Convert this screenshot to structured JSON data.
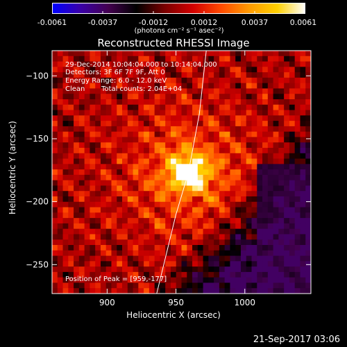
{
  "colorbar": {
    "ticks": [
      "-0.0061",
      "-0.0037",
      "-0.0012",
      "0.0012",
      "0.0037",
      "0.0061"
    ],
    "unit": "(photons cm⁻² s⁻¹ asec⁻²)",
    "min": -0.0061,
    "max": 0.0061,
    "stops": [
      "#0000ff",
      "#3a00a8",
      "#440050",
      "#000000",
      "#7a0000",
      "#d20000",
      "#ff4a00",
      "#ff9a00",
      "#ffd000",
      "#ffffff"
    ]
  },
  "chart_data": {
    "type": "heatmap",
    "title": "Reconstructed RHESSI Image",
    "xlabel": "Heliocentric X (arcsec)",
    "ylabel": "Heliocentric Y (arcsec)",
    "xlim": [
      860,
      1048
    ],
    "ylim": [
      -273,
      -80
    ],
    "xticks": [
      900,
      950,
      1000
    ],
    "yticks": [
      -100,
      -150,
      -200,
      -250
    ],
    "peak": {
      "x": 959,
      "y": -177
    },
    "limb_line": [
      [
        936,
        -273
      ],
      [
        950,
        -210
      ],
      [
        959,
        -177
      ],
      [
        967,
        -130
      ],
      [
        972,
        -80
      ]
    ],
    "annotations": {
      "time": "29-Dec-2014 10:04:04.000 to 10:14:04.000",
      "detectors": "Detectors: 3F 6F 7F 9F, Att 0",
      "energy": "Energy Range: 6.0 - 12.0 keV",
      "algo": "Clean",
      "counts": "Total counts: 2.04E+04",
      "peak_text": "Position of Peak = [959,-177]"
    }
  },
  "datestamp": "21-Sep-2017 03:06"
}
